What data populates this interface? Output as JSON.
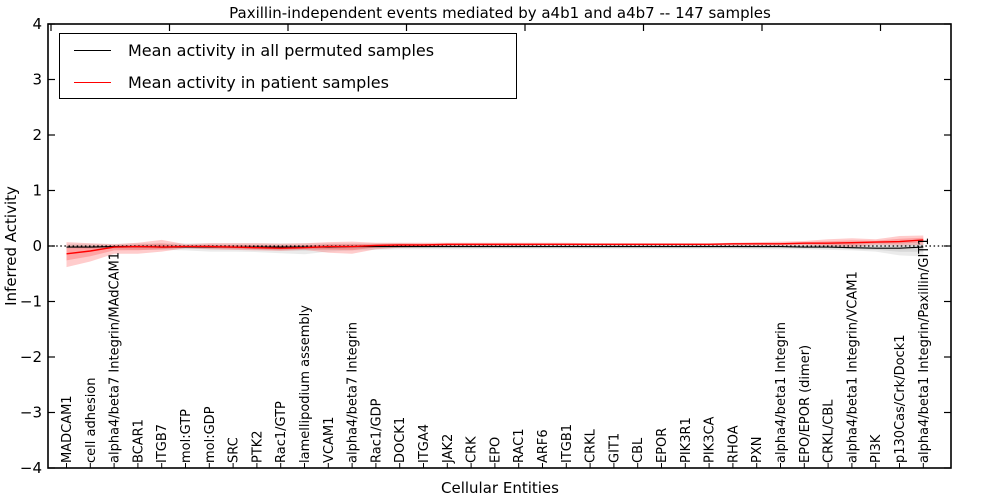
{
  "figure": {
    "title": "Paxillin-independent events mediated by a4b1 and a4b7 -- 147 samples",
    "xlabel": "Cellular Entities",
    "ylabel": "Inferred Activity",
    "legend": {
      "items": [
        {
          "label": "Mean activity in all permuted samples",
          "color": "#000000"
        },
        {
          "label": "Mean activity in patient samples",
          "color": "#ff0000"
        }
      ],
      "position": "upper left"
    }
  },
  "chart_data": {
    "type": "line",
    "title": "Paxillin-independent events mediated by a4b1 and a4b7 -- 147 samples",
    "xlabel": "Cellular Entities",
    "ylabel": "Inferred Activity",
    "ylim": [
      -4,
      4
    ],
    "ytick_values": [
      4,
      3,
      2,
      1,
      0,
      -1,
      -2,
      -3,
      -4
    ],
    "ytick_labels": [
      "4",
      "3",
      "2",
      "1",
      "0",
      "−1",
      "−2",
      "−3",
      "−4"
    ],
    "grid": false,
    "reference_line": {
      "y": 0,
      "style": "dotted",
      "color": "#000000"
    },
    "legend_position": "upper left",
    "categories": [
      "MADCAM1",
      "cell adhesion",
      "alpha4/beta7 Integrin/MAdCAM1",
      "BCAR1",
      "ITGB7",
      "mol:GTP",
      "mol:GDP",
      "SRC",
      "PTK2",
      "Rac1/GTP",
      "lamellipodium assembly",
      "VCAM1",
      "alpha4/beta7 Integrin",
      "Rac1/GDP",
      "DOCK1",
      "ITGA4",
      "JAK2",
      "CRK",
      "EPO",
      "RAC1",
      "ARF6",
      "ITGB1",
      "CRKL",
      "GIT1",
      "CBL",
      "EPOR",
      "PIK3R1",
      "PIK3CA",
      "RHOA",
      "PXN",
      "alpha4/beta1 Integrin",
      "EPO/EPOR (dimer)",
      "CRKL/CBL",
      "alpha4/beta1 Integrin/VCAM1",
      "PI3K",
      "p130Cas/Crk/Dock1",
      "alpha4/beta1 Integrin/Paxillin/GIT1"
    ],
    "series": [
      {
        "name": "Mean activity in all permuted samples",
        "color": "#000000",
        "band_color": "rgba(0,0,0,0.08)",
        "values": [
          -0.02,
          -0.02,
          -0.01,
          -0.01,
          -0.02,
          -0.02,
          -0.02,
          -0.02,
          -0.02,
          -0.02,
          -0.02,
          -0.02,
          -0.01,
          -0.01,
          -0.01,
          -0.01,
          -0.01,
          -0.01,
          -0.01,
          -0.01,
          -0.01,
          -0.01,
          -0.01,
          -0.01,
          -0.01,
          -0.01,
          -0.01,
          -0.01,
          -0.01,
          -0.01,
          -0.01,
          -0.02,
          -0.02,
          -0.03,
          -0.04,
          -0.04,
          -0.02
        ],
        "band_upper": [
          0.04,
          0.04,
          0.04,
          0.05,
          0.05,
          0.05,
          0.05,
          0.05,
          0.05,
          0.05,
          0.05,
          0.05,
          0.05,
          0.05,
          0.05,
          0.04,
          0.04,
          0.04,
          0.04,
          0.04,
          0.04,
          0.04,
          0.04,
          0.04,
          0.04,
          0.04,
          0.04,
          0.04,
          0.04,
          0.04,
          0.04,
          0.04,
          0.05,
          0.05,
          0.06,
          0.07,
          0.08
        ],
        "band_lower": [
          -0.04,
          -0.05,
          -0.06,
          -0.07,
          -0.07,
          -0.08,
          -0.1,
          -0.1,
          -0.11,
          -0.13,
          -0.15,
          -0.1,
          -0.08,
          -0.07,
          -0.06,
          -0.06,
          -0.06,
          -0.06,
          -0.05,
          -0.05,
          -0.05,
          -0.05,
          -0.05,
          -0.05,
          -0.05,
          -0.05,
          -0.05,
          -0.05,
          -0.05,
          -0.06,
          -0.06,
          -0.06,
          -0.07,
          -0.08,
          -0.1,
          -0.17,
          -0.19
        ]
      },
      {
        "name": "Mean activity in patient samples",
        "color": "#ff0000",
        "band_color": "rgba(255,0,0,0.20)",
        "values": [
          -0.14,
          -0.09,
          -0.02,
          -0.01,
          -0.02,
          -0.01,
          -0.01,
          -0.02,
          -0.03,
          -0.04,
          -0.03,
          -0.01,
          -0.01,
          0.01,
          0.02,
          0.02,
          0.03,
          0.03,
          0.03,
          0.03,
          0.03,
          0.03,
          0.03,
          0.03,
          0.03,
          0.03,
          0.03,
          0.03,
          0.04,
          0.04,
          0.04,
          0.05,
          0.05,
          0.06,
          0.07,
          0.08,
          0.11
        ],
        "band_upper": [
          0.07,
          0.05,
          0.03,
          0.06,
          0.11,
          0.03,
          0.05,
          0.05,
          0.05,
          0.04,
          0.05,
          0.07,
          0.08,
          0.06,
          0.06,
          0.06,
          0.06,
          0.06,
          0.06,
          0.06,
          0.06,
          0.06,
          0.05,
          0.05,
          0.05,
          0.05,
          0.05,
          0.05,
          0.06,
          0.07,
          0.08,
          0.09,
          0.12,
          0.14,
          0.12,
          0.18,
          0.19
        ],
        "band_lower": [
          -0.38,
          -0.28,
          -0.14,
          -0.14,
          -0.1,
          -0.04,
          -0.06,
          -0.07,
          -0.08,
          -0.09,
          -0.07,
          -0.12,
          -0.14,
          -0.06,
          -0.03,
          -0.02,
          -0.01,
          0.0,
          0.0,
          0.0,
          0.01,
          0.01,
          0.01,
          0.01,
          0.01,
          0.01,
          0.01,
          0.01,
          0.01,
          0.01,
          0.01,
          0.01,
          0.0,
          -0.02,
          0.02,
          0.01,
          0.02
        ]
      }
    ]
  }
}
